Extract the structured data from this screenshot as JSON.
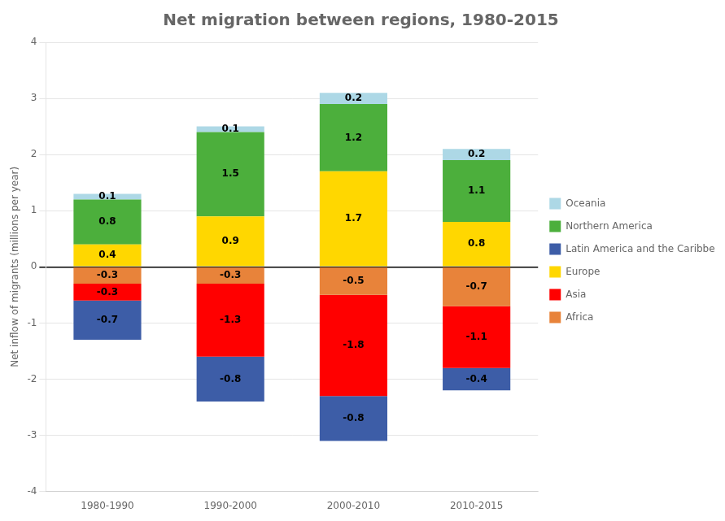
{
  "chart_data": {
    "type": "bar",
    "stacked": true,
    "title": "Net migration between regions, 1980-2015",
    "ylabel": "Net inflow of migrants (millions per year)",
    "categories": [
      "1980-1990",
      "1990-2000",
      "2000-2010",
      "2010-2015"
    ],
    "series": [
      {
        "name": "Oceania",
        "color": "#add8e6",
        "values": [
          0.1,
          0.1,
          0.2,
          0.2
        ]
      },
      {
        "name": "Northern America",
        "color": "#4caf3c",
        "values": [
          0.8,
          1.5,
          1.2,
          1.1
        ]
      },
      {
        "name": "Latin America and the Caribbean",
        "color": "#3D5DA7",
        "values": [
          -0.7,
          -0.8,
          -0.8,
          -0.4
        ]
      },
      {
        "name": "Europe",
        "color": "#FFD700",
        "values": [
          0.4,
          0.9,
          1.7,
          0.8
        ]
      },
      {
        "name": "Asia",
        "color": "#FF0000",
        "values": [
          -0.3,
          -1.3,
          -1.8,
          -1.1
        ]
      },
      {
        "name": "Africa",
        "color": "#E8833A",
        "values": [
          -0.3,
          -0.3,
          -0.5,
          -0.7
        ]
      }
    ],
    "ylim": [
      -4,
      4
    ],
    "yticks": [
      -4,
      -3,
      -2,
      -1,
      0,
      1,
      2,
      3,
      4
    ],
    "grid": true,
    "legend": "right",
    "data_labels": true
  }
}
